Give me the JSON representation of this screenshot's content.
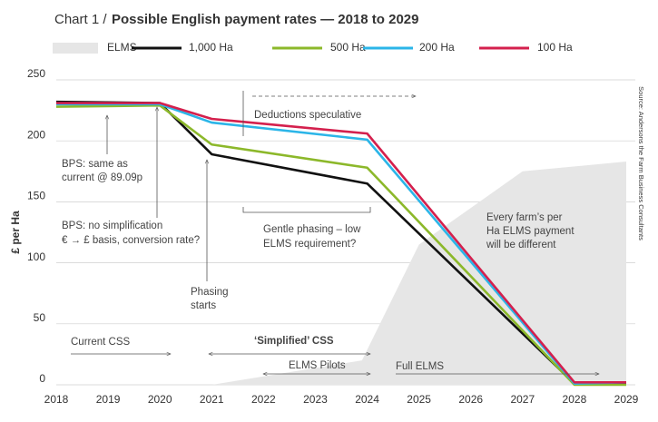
{
  "chart_data": {
    "type": "line",
    "title_prefix": "Chart 1 /",
    "title": "Possible English payment rates — 2018 to 2029",
    "ylabel": "£ per Ha",
    "source": "Source: Andersons the Farm Business Consultants",
    "xlim": [
      2018,
      2029
    ],
    "xticks": [
      2018,
      2019,
      2020,
      2021,
      2022,
      2023,
      2024,
      2025,
      2026,
      2027,
      2028,
      2029
    ],
    "ylim": [
      0,
      250
    ],
    "yticks": [
      0,
      50,
      100,
      150,
      200,
      250
    ],
    "grid": true,
    "series": [
      {
        "name": "ELMS",
        "kind": "area",
        "color": "#e6e6e6",
        "x": [
          2021,
          2023.9,
          2025,
          2027,
          2029
        ],
        "values": [
          0,
          20,
          115,
          175,
          183
        ]
      },
      {
        "name": "1,000 Ha",
        "color": "#111111",
        "x": [
          2018,
          2020,
          2021,
          2024,
          2028,
          2029
        ],
        "values": [
          232,
          231,
          189,
          165,
          1,
          1
        ]
      },
      {
        "name": "500 Ha",
        "color": "#8cb82a",
        "x": [
          2018,
          2020,
          2021,
          2024,
          2028,
          2029
        ],
        "values": [
          228,
          229,
          197,
          178,
          0,
          0
        ]
      },
      {
        "name": "200 Ha",
        "color": "#2bb5e8",
        "x": [
          2018,
          2020,
          2021,
          2024,
          2028,
          2029
        ],
        "values": [
          230,
          230,
          215,
          201,
          1,
          2
        ]
      },
      {
        "name": "100 Ha",
        "color": "#d4204d",
        "x": [
          2018,
          2020,
          2021,
          2024,
          2028,
          2029
        ],
        "values": [
          231,
          231,
          218,
          206,
          2,
          2
        ]
      }
    ],
    "annotations": [
      "Deductions speculative",
      "BPS: same as",
      "current @ 89.09p",
      "BPS: no simplification",
      "€ → £ basis, conversion rate?",
      "Phasing",
      "starts",
      "Gentle phasing – low",
      "ELMS requirement?",
      "Every farm’s per",
      "Ha ELMS payment",
      "will be different",
      "Current CSS",
      "‘Simplified’ CSS",
      "ELMS Pilots",
      "Full ELMS"
    ]
  }
}
